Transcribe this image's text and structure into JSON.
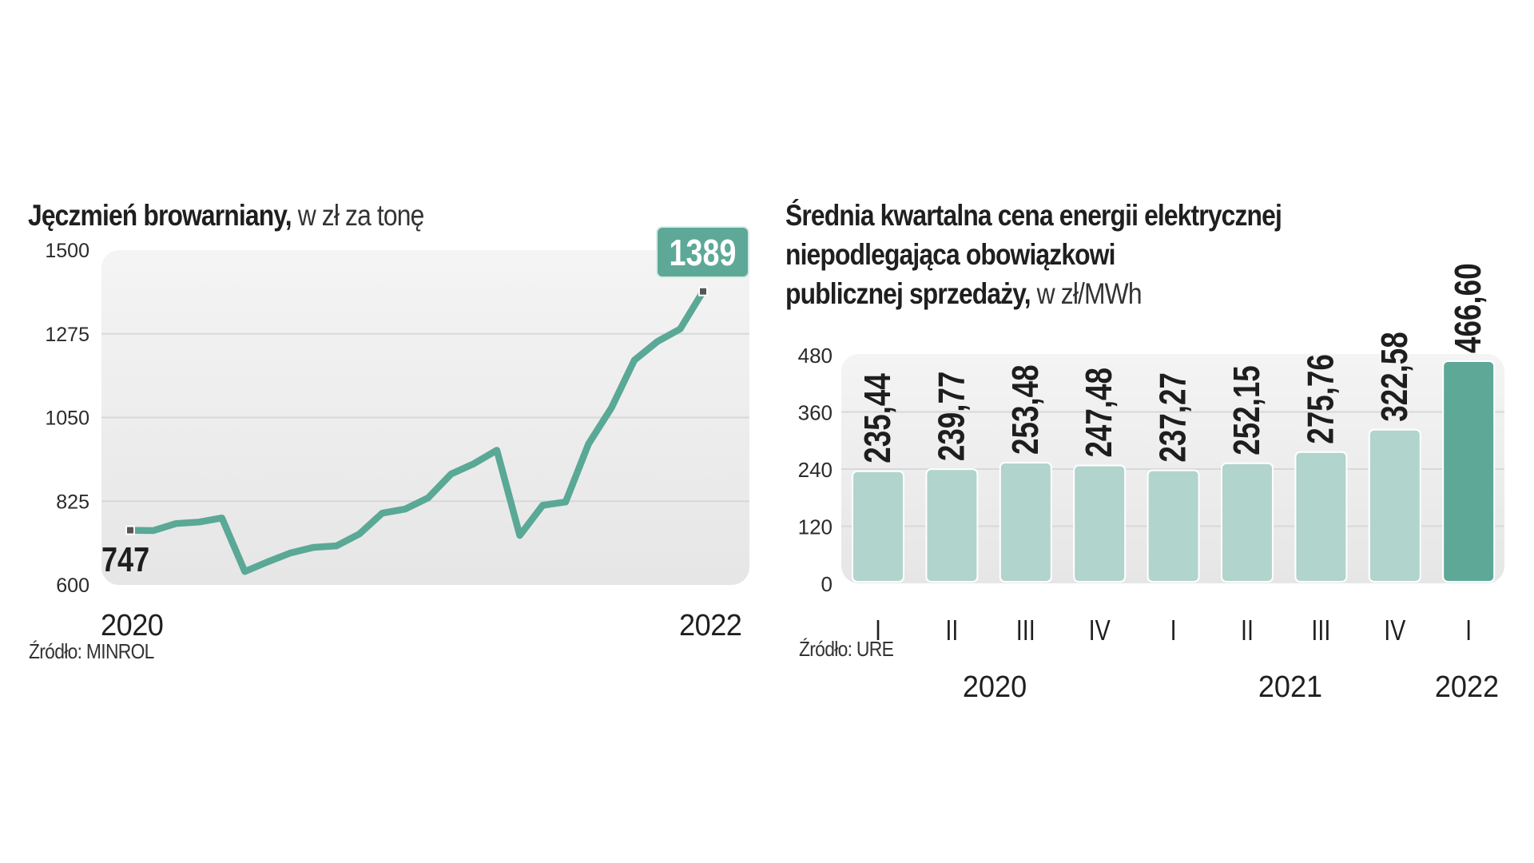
{
  "charts": {
    "left": {
      "title_bold": "Jęczmień browarniany,",
      "title_light": " w zł za tonę",
      "source": "Źródło: MINROL",
      "start_label": "747",
      "end_label": "1389",
      "x_start_label": "2020",
      "x_end_label": "2022"
    },
    "right": {
      "title_lines": [
        "Średnia kwartalna cena energii elektrycznej",
        "niepodlegająca obowiązkowi"
      ],
      "title_last_bold": "publicznej sprzedaży,",
      "title_last_light": " w zł/MWh",
      "source": "Źródło: URE"
    }
  },
  "colors": {
    "line": "#5aa896",
    "bar_light": "#b1d4cd",
    "bar_dark": "#5ea898",
    "badge": "#5ea898",
    "plot_bg_top": "#f4f4f4",
    "plot_bg_bottom": "#e6e6e6",
    "grid": "#d8d8d8",
    "marker": "#555555"
  },
  "chart_data": [
    {
      "type": "line",
      "title": "Jęczmień browarniany, w zł za tonę",
      "xlabel": "",
      "ylabel": "",
      "x_tick_labels": [
        "2020",
        "2022"
      ],
      "yticks": [
        600,
        825,
        1050,
        1275,
        1500
      ],
      "ylim": [
        600,
        1500
      ],
      "grid": true,
      "series": [
        {
          "name": "Jęczmień browarniany",
          "values": [
            747,
            746,
            765,
            769,
            780,
            636,
            662,
            686,
            701,
            705,
            737,
            793,
            804,
            834,
            898,
            926,
            962,
            733,
            814,
            823,
            979,
            1076,
            1204,
            1254,
            1288,
            1389
          ]
        }
      ],
      "annotations": [
        {
          "text": "747",
          "point": "first"
        },
        {
          "text": "1389",
          "point": "last",
          "style": "badge"
        }
      ],
      "source": "Źródło: MINROL"
    },
    {
      "type": "bar",
      "title": "Średnia kwartalna cena energii elektrycznej niepodlegająca obowiązkowi publicznej sprzedaży, w zł/MWh",
      "categories": [
        "I",
        "II",
        "III",
        "IV",
        "I",
        "II",
        "III",
        "IV",
        "I"
      ],
      "groups": [
        {
          "label": "2020",
          "from": 0,
          "to": 3
        },
        {
          "label": "2021",
          "from": 4,
          "to": 7
        },
        {
          "label": "2022",
          "from": 8,
          "to": 8
        }
      ],
      "values": [
        235.44,
        239.77,
        253.48,
        247.48,
        237.27,
        252.15,
        275.76,
        322.58,
        466.6
      ],
      "value_labels": [
        "235,44",
        "239,77",
        "253,48",
        "247,48",
        "237,27",
        "252,15",
        "275,76",
        "322,58",
        "466,60"
      ],
      "highlight_index": 8,
      "yticks": [
        0,
        120,
        240,
        360,
        480
      ],
      "ylim": [
        0,
        480
      ],
      "grid": true,
      "xlabel": "",
      "ylabel": "",
      "source": "Źródło: URE"
    }
  ]
}
